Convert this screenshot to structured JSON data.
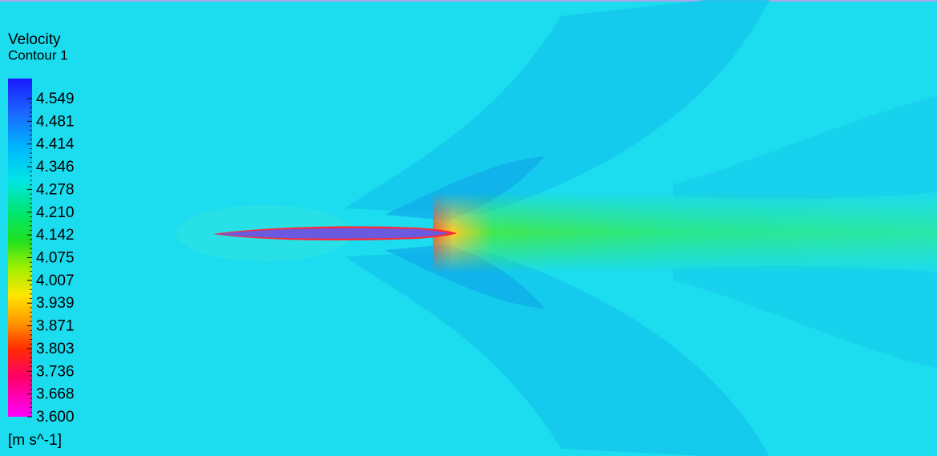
{
  "legend": {
    "title": "Velocity",
    "subtitle": "Contour 1",
    "ticks": [
      "4.549",
      "4.481",
      "4.414",
      "4.346",
      "4.278",
      "4.210",
      "4.142",
      "4.075",
      "4.007",
      "3.939",
      "3.871",
      "3.803",
      "3.736",
      "3.668",
      "3.600"
    ],
    "unit": "[m s^-1]"
  }
}
